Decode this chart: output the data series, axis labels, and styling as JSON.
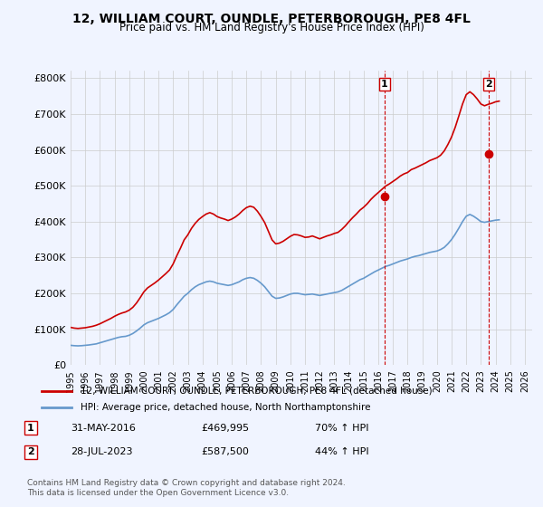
{
  "title": "12, WILLIAM COURT, OUNDLE, PETERBOROUGH, PE8 4FL",
  "subtitle": "Price paid vs. HM Land Registry's House Price Index (HPI)",
  "ylabel_ticks": [
    "£0",
    "£100K",
    "£200K",
    "£300K",
    "£400K",
    "£500K",
    "£600K",
    "£700K",
    "£800K"
  ],
  "ytick_values": [
    0,
    100000,
    200000,
    300000,
    400000,
    500000,
    600000,
    700000,
    800000
  ],
  "ylim": [
    0,
    820000
  ],
  "xlim_start": 1995.0,
  "xlim_end": 2026.5,
  "background_color": "#f0f4ff",
  "plot_bg_color": "#f0f4ff",
  "grid_color": "#cccccc",
  "red_line_color": "#cc0000",
  "blue_line_color": "#6699cc",
  "marker_color_red": "#cc0000",
  "marker_color_blue": "#6699cc",
  "sale1_year": 2016.42,
  "sale1_price": 469995,
  "sale1_label": "1",
  "sale2_year": 2023.56,
  "sale2_price": 587500,
  "sale2_label": "2",
  "legend_red": "12, WILLIAM COURT, OUNDLE, PETERBOROUGH, PE8 4FL (detached house)",
  "legend_blue": "HPI: Average price, detached house, North Northamptonshire",
  "annotation1_date": "31-MAY-2016",
  "annotation1_price": "£469,995",
  "annotation1_pct": "70% ↑ HPI",
  "annotation2_date": "28-JUL-2023",
  "annotation2_price": "£587,500",
  "annotation2_pct": "44% ↑ HPI",
  "footer": "Contains HM Land Registry data © Crown copyright and database right 2024.\nThis data is licensed under the Open Government Licence v3.0.",
  "hpi_years": [
    1995.0,
    1995.25,
    1995.5,
    1995.75,
    1996.0,
    1996.25,
    1996.5,
    1996.75,
    1997.0,
    1997.25,
    1997.5,
    1997.75,
    1998.0,
    1998.25,
    1998.5,
    1998.75,
    1999.0,
    1999.25,
    1999.5,
    1999.75,
    2000.0,
    2000.25,
    2000.5,
    2000.75,
    2001.0,
    2001.25,
    2001.5,
    2001.75,
    2002.0,
    2002.25,
    2002.5,
    2002.75,
    2003.0,
    2003.25,
    2003.5,
    2003.75,
    2004.0,
    2004.25,
    2004.5,
    2004.75,
    2005.0,
    2005.25,
    2005.5,
    2005.75,
    2006.0,
    2006.25,
    2006.5,
    2006.75,
    2007.0,
    2007.25,
    2007.5,
    2007.75,
    2008.0,
    2008.25,
    2008.5,
    2008.75,
    2009.0,
    2009.25,
    2009.5,
    2009.75,
    2010.0,
    2010.25,
    2010.5,
    2010.75,
    2011.0,
    2011.25,
    2011.5,
    2011.75,
    2012.0,
    2012.25,
    2012.5,
    2012.75,
    2013.0,
    2013.25,
    2013.5,
    2013.75,
    2014.0,
    2014.25,
    2014.5,
    2014.75,
    2015.0,
    2015.25,
    2015.5,
    2015.75,
    2016.0,
    2016.25,
    2016.5,
    2016.75,
    2017.0,
    2017.25,
    2017.5,
    2017.75,
    2018.0,
    2018.25,
    2018.5,
    2018.75,
    2019.0,
    2019.25,
    2019.5,
    2019.75,
    2020.0,
    2020.25,
    2020.5,
    2020.75,
    2021.0,
    2021.25,
    2021.5,
    2021.75,
    2022.0,
    2022.25,
    2022.5,
    2022.75,
    2023.0,
    2023.25,
    2023.5,
    2023.75,
    2024.0,
    2024.25
  ],
  "hpi_values": [
    55000,
    54000,
    53500,
    54000,
    55000,
    56000,
    57500,
    59000,
    62000,
    65000,
    68000,
    71000,
    74000,
    77000,
    79000,
    80000,
    83000,
    88000,
    95000,
    103000,
    112000,
    118000,
    122000,
    126000,
    130000,
    135000,
    140000,
    146000,
    155000,
    168000,
    180000,
    192000,
    200000,
    210000,
    218000,
    224000,
    228000,
    232000,
    234000,
    232000,
    228000,
    226000,
    224000,
    222000,
    224000,
    228000,
    232000,
    238000,
    242000,
    244000,
    242000,
    236000,
    228000,
    218000,
    205000,
    192000,
    186000,
    187000,
    190000,
    194000,
    198000,
    200000,
    200000,
    198000,
    196000,
    197000,
    198000,
    196000,
    194000,
    196000,
    198000,
    200000,
    202000,
    204000,
    208000,
    214000,
    220000,
    226000,
    232000,
    238000,
    242000,
    248000,
    254000,
    260000,
    265000,
    270000,
    275000,
    278000,
    282000,
    286000,
    290000,
    293000,
    296000,
    300000,
    303000,
    305000,
    308000,
    311000,
    314000,
    316000,
    318000,
    322000,
    328000,
    338000,
    350000,
    365000,
    382000,
    400000,
    415000,
    420000,
    415000,
    408000,
    400000,
    398000,
    400000,
    402000,
    404000,
    405000
  ],
  "house_years": [
    1995.0,
    1995.25,
    1995.5,
    1995.75,
    1996.0,
    1996.25,
    1996.5,
    1996.75,
    1997.0,
    1997.25,
    1997.5,
    1997.75,
    1998.0,
    1998.25,
    1998.5,
    1998.75,
    1999.0,
    1999.25,
    1999.5,
    1999.75,
    2000.0,
    2000.25,
    2000.5,
    2000.75,
    2001.0,
    2001.25,
    2001.5,
    2001.75,
    2002.0,
    2002.25,
    2002.5,
    2002.75,
    2003.0,
    2003.25,
    2003.5,
    2003.75,
    2004.0,
    2004.25,
    2004.5,
    2004.75,
    2005.0,
    2005.25,
    2005.5,
    2005.75,
    2006.0,
    2006.25,
    2006.5,
    2006.75,
    2007.0,
    2007.25,
    2007.5,
    2007.75,
    2008.0,
    2008.25,
    2008.5,
    2008.75,
    2009.0,
    2009.25,
    2009.5,
    2009.75,
    2010.0,
    2010.25,
    2010.5,
    2010.75,
    2011.0,
    2011.25,
    2011.5,
    2011.75,
    2012.0,
    2012.25,
    2012.5,
    2012.75,
    2013.0,
    2013.25,
    2013.5,
    2013.75,
    2014.0,
    2014.25,
    2014.5,
    2014.75,
    2015.0,
    2015.25,
    2015.5,
    2015.75,
    2016.0,
    2016.25,
    2016.5,
    2016.75,
    2017.0,
    2017.25,
    2017.5,
    2017.75,
    2018.0,
    2018.25,
    2018.5,
    2018.75,
    2019.0,
    2019.25,
    2019.5,
    2019.75,
    2020.0,
    2020.25,
    2020.5,
    2020.75,
    2021.0,
    2021.25,
    2021.5,
    2021.75,
    2022.0,
    2022.25,
    2022.5,
    2022.75,
    2023.0,
    2023.25,
    2023.5,
    2023.75,
    2024.0,
    2024.25
  ],
  "house_values": [
    105000,
    103000,
    102000,
    103000,
    104000,
    106000,
    108000,
    111000,
    115000,
    120000,
    125000,
    130000,
    136000,
    141000,
    145000,
    148000,
    153000,
    161000,
    173000,
    188000,
    204000,
    215000,
    222000,
    229000,
    237000,
    246000,
    255000,
    265000,
    282000,
    305000,
    326000,
    349000,
    363000,
    381000,
    395000,
    406000,
    414000,
    421000,
    425000,
    421000,
    414000,
    410000,
    407000,
    403000,
    407000,
    413000,
    421000,
    431000,
    439000,
    443000,
    440000,
    429000,
    414000,
    397000,
    373000,
    349000,
    338000,
    340000,
    345000,
    352000,
    359000,
    364000,
    363000,
    360000,
    356000,
    357000,
    360000,
    356000,
    352000,
    356000,
    360000,
    363000,
    367000,
    370000,
    378000,
    388000,
    400000,
    411000,
    421000,
    432000,
    440000,
    450000,
    462000,
    472000,
    481000,
    490000,
    499000,
    505000,
    512000,
    519000,
    527000,
    533000,
    537000,
    545000,
    549000,
    554000,
    559000,
    564000,
    570000,
    574000,
    578000,
    585000,
    597000,
    615000,
    636000,
    663000,
    695000,
    728000,
    754000,
    762000,
    754000,
    742000,
    728000,
    723000,
    727000,
    730000,
    734000,
    736000
  ]
}
